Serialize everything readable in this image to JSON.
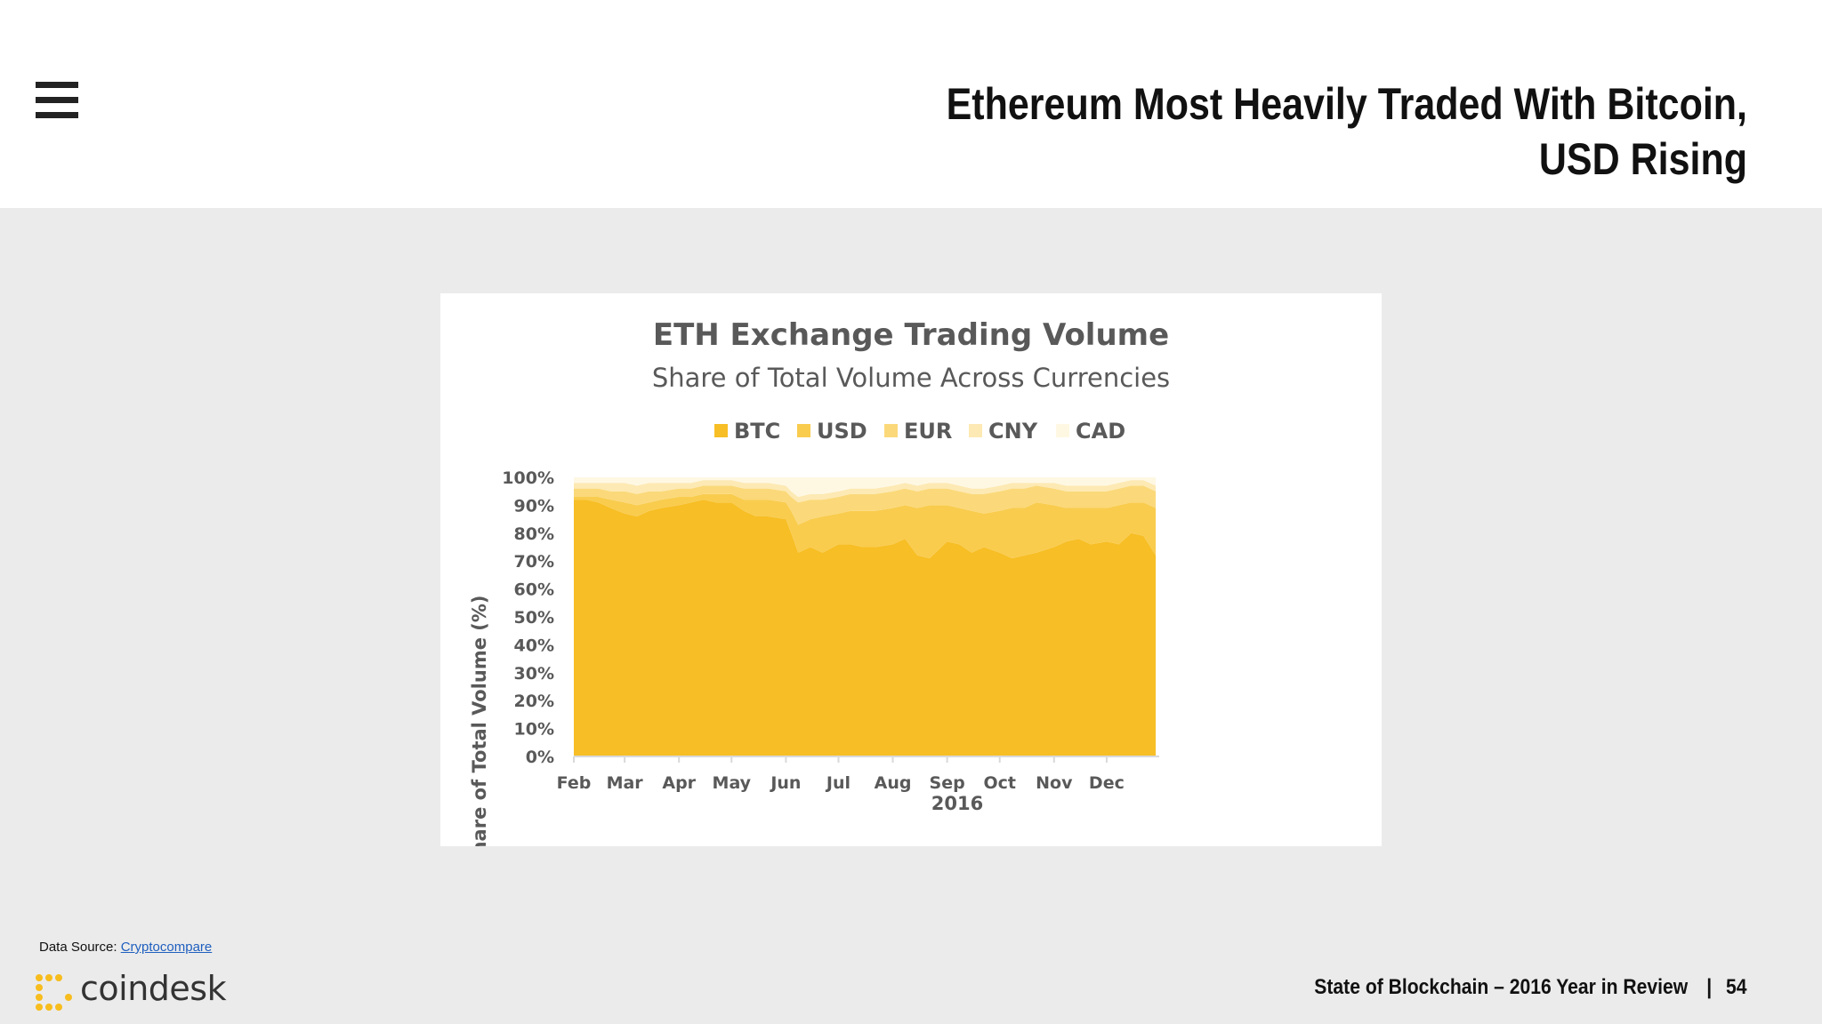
{
  "header": {
    "menu_icon": "hamburger-menu-icon",
    "title_line1": "Ethereum Most Heavily Traded With Bitcoin,",
    "title_line2": "USD Rising"
  },
  "chart_data": {
    "type": "area",
    "stacked": true,
    "title": "ETH Exchange Trading Volume",
    "subtitle": "Share of Total Volume Across Currencies",
    "xlabel": "2016",
    "ylabel": "Share of Total Volume (%)",
    "ylim": [
      0,
      100
    ],
    "y_ticks": [
      "0%",
      "10%",
      "20%",
      "30%",
      "40%",
      "50%",
      "60%",
      "70%",
      "80%",
      "90%",
      "100%"
    ],
    "x_ticks": [
      "Feb",
      "Mar",
      "Apr",
      "May",
      "Jun",
      "Jul",
      "Aug",
      "Sep",
      "Oct",
      "Nov",
      "Dec"
    ],
    "legend_position": "top",
    "x": [
      "2016-02-01",
      "2016-02-08",
      "2016-02-15",
      "2016-02-22",
      "2016-03-01",
      "2016-03-08",
      "2016-03-15",
      "2016-03-22",
      "2016-04-01",
      "2016-04-08",
      "2016-04-15",
      "2016-04-22",
      "2016-05-01",
      "2016-05-08",
      "2016-05-15",
      "2016-05-22",
      "2016-06-01",
      "2016-06-04",
      "2016-06-08",
      "2016-06-15",
      "2016-06-22",
      "2016-07-01",
      "2016-07-08",
      "2016-07-15",
      "2016-07-22",
      "2016-08-01",
      "2016-08-08",
      "2016-08-15",
      "2016-08-22",
      "2016-09-01",
      "2016-09-08",
      "2016-09-15",
      "2016-09-22",
      "2016-10-01",
      "2016-10-08",
      "2016-10-15",
      "2016-10-22",
      "2016-11-01",
      "2016-11-08",
      "2016-11-15",
      "2016-11-22",
      "2016-12-01",
      "2016-12-08",
      "2016-12-15",
      "2016-12-22",
      "2016-12-29"
    ],
    "series": [
      {
        "name": "BTC",
        "color": "#f7be25",
        "values": [
          92,
          92,
          91,
          89,
          87,
          86,
          88,
          89,
          90,
          91,
          92,
          91,
          91,
          88,
          86,
          86,
          85,
          80,
          73,
          75,
          73,
          76,
          76,
          75,
          75,
          76,
          78,
          72,
          71,
          77,
          76,
          73,
          75,
          73,
          71,
          72,
          73,
          75,
          77,
          78,
          76,
          77,
          76,
          80,
          79,
          72
        ]
      },
      {
        "name": "USD",
        "color": "#f9cc4e",
        "values": [
          1,
          1,
          2,
          3,
          4,
          4,
          3,
          3,
          3,
          2,
          2,
          3,
          3,
          4,
          6,
          6,
          6,
          8,
          10,
          10,
          13,
          11,
          12,
          13,
          13,
          13,
          12,
          17,
          19,
          13,
          13,
          15,
          12,
          15,
          18,
          17,
          18,
          15,
          12,
          11,
          13,
          12,
          14,
          11,
          12,
          17
        ]
      },
      {
        "name": "EUR",
        "color": "#fbd97a",
        "values": [
          3,
          3,
          3,
          3,
          4,
          4,
          4,
          3,
          3,
          3,
          3,
          3,
          3,
          4,
          4,
          4,
          4,
          5,
          8,
          7,
          6,
          6,
          6,
          6,
          6,
          6,
          6,
          6,
          6,
          6,
          6,
          6,
          7,
          7,
          7,
          7,
          6,
          6,
          6,
          6,
          6,
          6,
          6,
          6,
          6,
          6
        ]
      },
      {
        "name": "CNY",
        "color": "#fde9b3",
        "values": [
          2,
          2,
          2,
          3,
          3,
          3,
          3,
          3,
          2,
          2,
          2,
          2,
          2,
          2,
          2,
          2,
          2,
          2,
          2,
          2,
          2,
          2,
          2,
          2,
          2,
          2,
          2,
          2,
          2,
          2,
          2,
          2,
          2,
          2,
          2,
          2,
          1,
          2,
          2,
          2,
          2,
          2,
          2,
          2,
          2,
          2
        ]
      },
      {
        "name": "CAD",
        "color": "#fef8e3",
        "values": [
          2,
          2,
          2,
          2,
          2,
          3,
          2,
          2,
          2,
          2,
          1,
          1,
          1,
          2,
          2,
          2,
          3,
          5,
          7,
          6,
          6,
          5,
          4,
          4,
          4,
          3,
          2,
          3,
          2,
          2,
          3,
          4,
          4,
          3,
          2,
          2,
          2,
          2,
          3,
          3,
          3,
          3,
          2,
          1,
          1,
          3
        ]
      }
    ]
  },
  "footer": {
    "source_label": "Data Source: ",
    "source_link": "Cryptocompare",
    "logo_text": "coindesk",
    "report_title": "State of Blockchain – 2016 Year in Review",
    "separator": "|",
    "page_number": "54"
  }
}
